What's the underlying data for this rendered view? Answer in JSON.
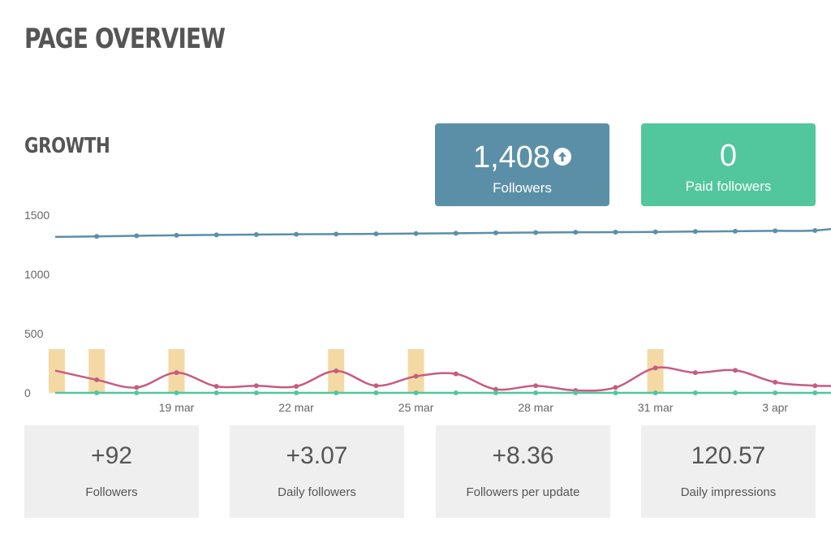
{
  "page": {
    "title": "PAGE OVERVIEW"
  },
  "growth": {
    "title": "GROWTH",
    "kpis": {
      "followers": {
        "value": "1,408",
        "label": "Followers",
        "color": "#5b8fa8",
        "icon": "arrow-up-circle-icon"
      },
      "paid": {
        "value": "0",
        "label": "Paid followers",
        "color": "#52c69d"
      }
    },
    "stats": [
      {
        "value": "+92",
        "label": "Followers"
      },
      {
        "value": "+3.07",
        "label": "Daily followers"
      },
      {
        "value": "+8.36",
        "label": "Followers per update"
      },
      {
        "value": "120.57",
        "label": "Daily impressions"
      }
    ]
  },
  "chart_data": {
    "type": "line",
    "x": [
      "16 mar",
      "17 mar",
      "18 mar",
      "19 mar",
      "20 mar",
      "21 mar",
      "22 mar",
      "23 mar",
      "24 mar",
      "25 mar",
      "26 mar",
      "27 mar",
      "28 mar",
      "29 mar",
      "30 mar",
      "31 mar",
      "1 apr",
      "2 apr",
      "3 apr",
      "4 apr",
      "5 apr"
    ],
    "x_tick_labels": [
      "19 mar",
      "22 mar",
      "25 mar",
      "28 mar",
      "31 mar",
      "3 apr"
    ],
    "x_tick_positions": [
      "17.5 mar",
      "20.5 mar",
      "23.5 mar",
      "26.5 mar",
      "29.5 mar",
      "1.5 apr"
    ],
    "y_ticks": [
      0,
      500,
      1000,
      1500
    ],
    "ylim": [
      0,
      1500
    ],
    "grid": false,
    "series": [
      {
        "values": [
          1316,
          1320,
          1325,
          1330,
          1333,
          1336,
          1338,
          1340,
          1342,
          1344,
          1347,
          1350,
          1353,
          1355,
          1356,
          1358,
          1361,
          1364,
          1367,
          1370,
          1408
        ],
        "color": "#5b8fa8",
        "kind": "line"
      },
      {
        "values": [
          270,
          110,
          45,
          170,
          55,
          60,
          55,
          185,
          60,
          140,
          160,
          30,
          60,
          20,
          45,
          210,
          170,
          190,
          90,
          60,
          60
        ],
        "color": "#c75b80",
        "kind": "line"
      },
      {
        "values": [
          0,
          0,
          0,
          0,
          0,
          0,
          0,
          0,
          0,
          0,
          0,
          0,
          0,
          0,
          0,
          0,
          0,
          0,
          0,
          0,
          0
        ],
        "color": "#52c69d",
        "kind": "line"
      },
      {
        "values": [
          1,
          1,
          0,
          1,
          0,
          0,
          0,
          1,
          0,
          1,
          0,
          0,
          0,
          0,
          0,
          1,
          0,
          0,
          0,
          0,
          0
        ],
        "color": "#f5d9a5",
        "kind": "bar",
        "bar_value": 370
      }
    ]
  }
}
